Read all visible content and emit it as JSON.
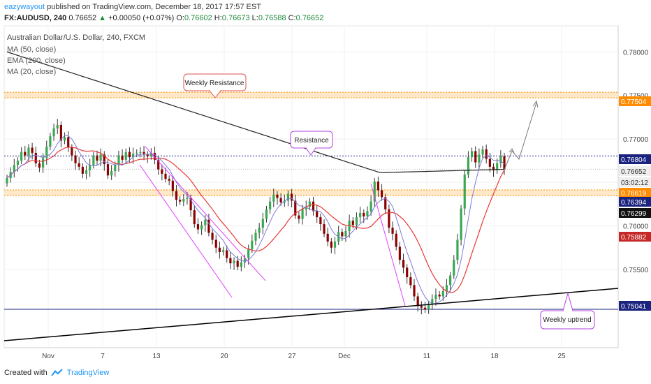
{
  "header": {
    "author": "eazywayout",
    "published": "published on TradingView.com, December 18, 2017 17:57 EST",
    "symbol": "FX:AUDUSD, 240",
    "price": "0.76652",
    "change_arrow": "▲",
    "change": "+0.00050 (+0.07%)",
    "o_label": "O:",
    "o": "0.76602",
    "h_label": "H:",
    "h": "0.76673",
    "l_label": "L:",
    "l": "0.76588",
    "c_label": "C:",
    "c": "0.76652"
  },
  "legend": {
    "title": "Australian Dollar/U.S. Dollar, 240, FXCM",
    "ma50": "MA (50, close)",
    "ema200": "EMA (200, close)",
    "ma20": "MA (20, close)"
  },
  "annotations": {
    "weekly_resistance": "Weekly Resistance",
    "resistance": "Resistance",
    "weekly_uptrend": "Weekly uptrend"
  },
  "footer": {
    "created_with": "Created with",
    "brand": "TradingView"
  },
  "colors": {
    "up": "#26a69a",
    "down": "#ef5350",
    "candle_body_up": "#3aa853",
    "candle_body_down": "#8b0000",
    "ma50": "#e53935",
    "ema200": "#222222",
    "ma20": "#7b7bd6",
    "orange_zone": "#ff8c00",
    "blue_line": "#1a237e",
    "channel": "#e040fb"
  },
  "chart_data": {
    "type": "candlestick",
    "x_tick_labels": [
      "Nov",
      "7",
      "13",
      "20",
      "27",
      "Dec",
      "11",
      "18",
      "25"
    ],
    "y_tick_labels": [
      "0.78000",
      "0.77500",
      "0.77000",
      "0.76500",
      "0.76000",
      "0.75500"
    ],
    "ylim": [
      0.746,
      0.783
    ],
    "price_labels": [
      {
        "value": 0.77504,
        "label": "0.77504",
        "color": "#ff8c00"
      },
      {
        "value": 0.76804,
        "label": "0.76804",
        "color": "#1a237e"
      },
      {
        "value": 0.76652,
        "label": "0.76652",
        "color": "#eeeeee"
      },
      {
        "value": 0.7645,
        "label": "03:02:12",
        "color": "#eeeeee"
      },
      {
        "value": 0.76291,
        "label": "0.76619",
        "color": "#ff8c00"
      },
      {
        "value": 0.76394,
        "label": "0.76394",
        "color": "#1a237e"
      },
      {
        "value": 0.76299,
        "label": "0.76299",
        "color": "#111111"
      },
      {
        "value": 0.75882,
        "label": "0.75882",
        "color": "#c62828"
      },
      {
        "value": 0.75041,
        "label": "0.75041",
        "color": "#1a237e"
      }
    ],
    "levels": {
      "weekly_resistance": 0.77504,
      "resistance": 0.76804,
      "support_zone": 0.76619,
      "weekly_low": 0.75041
    },
    "candles_close": [
      0.7655,
      0.7662,
      0.767,
      0.7675,
      0.7685,
      0.7681,
      0.769,
      0.7684,
      0.7672,
      0.7667,
      0.7678,
      0.7691,
      0.7703,
      0.7712,
      0.7716,
      0.7698,
      0.7702,
      0.769,
      0.7681,
      0.7672,
      0.7668,
      0.766,
      0.7664,
      0.767,
      0.7681,
      0.7675,
      0.7682,
      0.7671,
      0.7658,
      0.7663,
      0.767,
      0.7681,
      0.7676,
      0.7685,
      0.7679,
      0.7683,
      0.7684,
      0.7685,
      0.7682,
      0.768,
      0.7684,
      0.7676,
      0.7665,
      0.766,
      0.7654,
      0.7652,
      0.764,
      0.763,
      0.7628,
      0.7631,
      0.7632,
      0.7618,
      0.7602,
      0.7596,
      0.7601,
      0.7607,
      0.7592,
      0.7584,
      0.7575,
      0.757,
      0.7572,
      0.7563,
      0.7557,
      0.756,
      0.7553,
      0.7558,
      0.7563,
      0.7573,
      0.7583,
      0.7592,
      0.7598,
      0.7608,
      0.7619,
      0.7628,
      0.7636,
      0.7632,
      0.7627,
      0.7629,
      0.7637,
      0.7629,
      0.7612,
      0.7608,
      0.7619,
      0.7622,
      0.7628,
      0.7617,
      0.761,
      0.7602,
      0.7591,
      0.7582,
      0.7575,
      0.7582,
      0.7593,
      0.7588,
      0.7594,
      0.7606,
      0.7601,
      0.761,
      0.7615,
      0.7611,
      0.7617,
      0.7628,
      0.7651,
      0.7641,
      0.7633,
      0.7619,
      0.7598,
      0.7591,
      0.7576,
      0.7561,
      0.7552,
      0.7541,
      0.7532,
      0.7519,
      0.7508,
      0.7506,
      0.7504,
      0.751,
      0.7516,
      0.7521,
      0.7519,
      0.7525,
      0.7532,
      0.7543,
      0.7561,
      0.7584,
      0.762,
      0.7659,
      0.7679,
      0.7686,
      0.7673,
      0.7682,
      0.7688,
      0.7677,
      0.7668,
      0.7664,
      0.7672,
      0.768,
      0.7665
    ]
  }
}
